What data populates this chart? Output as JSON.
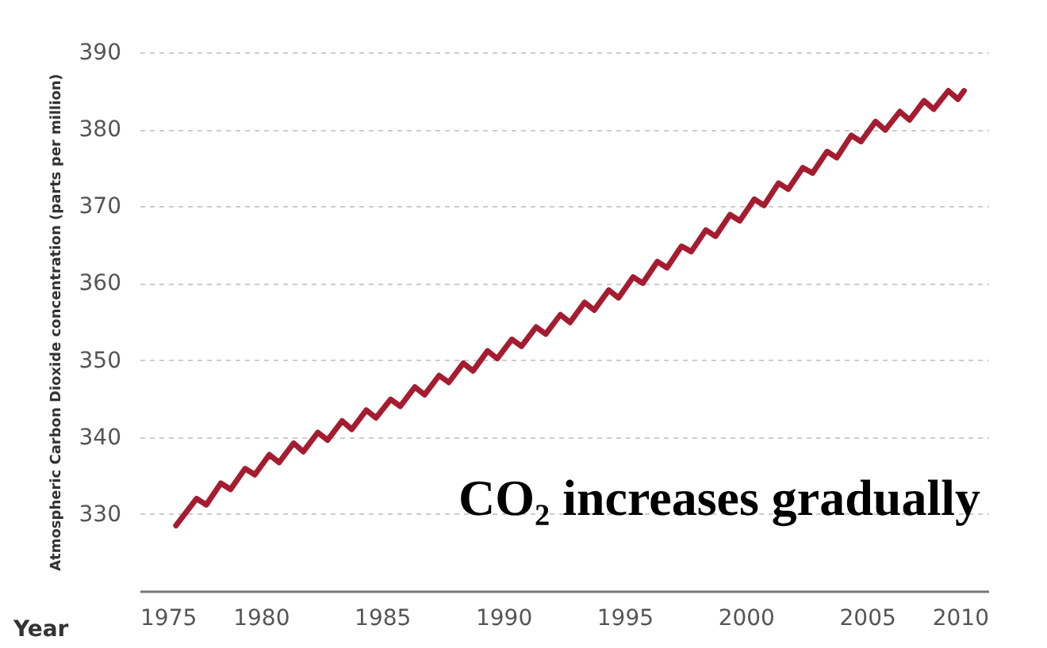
{
  "chart_data": {
    "type": "line",
    "xlabel": "Year",
    "ylabel": "Atmospheric Carbon Dioxide concentration (parts per million)",
    "annotations": [
      "CO₂ increases gradually"
    ],
    "x": [
      1976.5,
      1977.35,
      1977.75,
      1978.35,
      1978.75,
      1979.35,
      1979.75,
      1980.35,
      1980.75,
      1981.35,
      1981.75,
      1982.35,
      1982.75,
      1983.35,
      1983.75,
      1984.35,
      1984.75,
      1985.35,
      1985.75,
      1986.35,
      1986.75,
      1987.35,
      1987.75,
      1988.35,
      1988.75,
      1989.35,
      1989.75,
      1990.35,
      1990.75,
      1991.35,
      1991.75,
      1992.35,
      1992.75,
      1993.35,
      1993.75,
      1994.35,
      1994.75,
      1995.35,
      1995.75,
      1996.35,
      1996.75,
      1997.35,
      1997.75,
      1998.35,
      1998.75,
      1999.35,
      1999.75,
      2000.35,
      2000.75,
      2001.35,
      2001.75,
      2002.35,
      2002.75,
      2003.35,
      2003.75,
      2004.35,
      2004.75,
      2005.35,
      2005.75,
      2006.35,
      2006.75,
      2007.35,
      2007.75,
      2008.35,
      2008.75,
      2009.0
    ],
    "series": [
      {
        "color": "#a51c30",
        "values": [
          328.5,
          332.0,
          331.2,
          334.0,
          333.2,
          335.9,
          335.1,
          337.7,
          336.7,
          339.2,
          338.1,
          340.6,
          339.6,
          342.1,
          341.0,
          343.5,
          342.5,
          344.9,
          344.0,
          346.5,
          345.5,
          348.0,
          347.1,
          349.6,
          348.6,
          351.2,
          350.2,
          352.7,
          351.8,
          354.3,
          353.4,
          355.9,
          354.9,
          357.5,
          356.5,
          359.1,
          358.1,
          360.8,
          360.0,
          362.8,
          362.0,
          364.8,
          364.1,
          366.9,
          366.1,
          368.9,
          368.1,
          370.9,
          370.1,
          373.0,
          372.2,
          375.0,
          374.3,
          377.1,
          376.3,
          379.2,
          378.4,
          381.0,
          379.9,
          382.3,
          381.2,
          383.7,
          382.6,
          385.0,
          383.9,
          385.0
        ]
      }
    ],
    "xlim": [
      1975,
      2010
    ],
    "xticks": [
      1975,
      1980,
      1985,
      1990,
      1995,
      2000,
      2005,
      2010
    ],
    "ylim": [
      320,
      390
    ],
    "yticks": [
      330,
      340,
      350,
      360,
      370,
      380,
      390
    ],
    "grid": "y",
    "line_style": "solid"
  }
}
